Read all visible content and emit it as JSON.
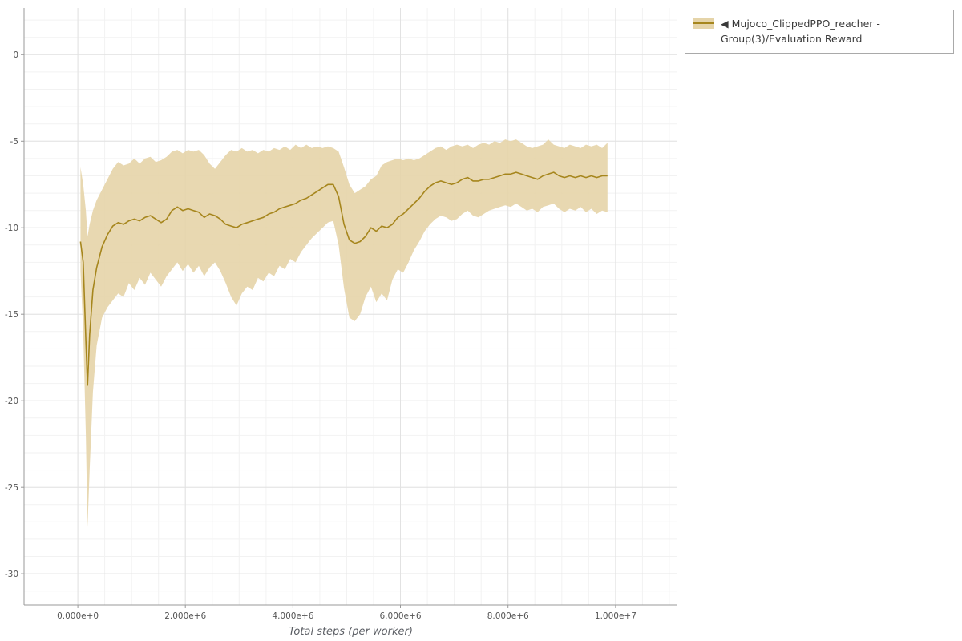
{
  "legend": {
    "arrow": "◀",
    "label": "Mujoco_ClippedPPO_reacher - Group(3)/Evaluation Reward"
  },
  "chart_data": {
    "type": "line",
    "title": "",
    "xlabel": "Total steps (per worker)",
    "ylabel": "",
    "x_units": "steps (values below are in millions of steps)",
    "legend_position": "top-right-outside",
    "grid_on": true,
    "xlim": [
      -1.0,
      11.15
    ],
    "ylim": [
      -31.8,
      2.7
    ],
    "x_ticks": {
      "values": [
        0,
        2,
        4,
        6,
        8,
        10
      ],
      "labels": [
        "0.000e+0",
        "2.000e+6",
        "4.000e+6",
        "6.000e+6",
        "8.000e+6",
        "1.000e+7"
      ]
    },
    "y_ticks": {
      "values": [
        0,
        -5,
        -10,
        -15,
        -20,
        -25,
        -30
      ],
      "labels": [
        "0",
        "-5",
        "-10",
        "-15",
        "-20",
        "-25",
        "-30"
      ]
    },
    "grid": {
      "x_minor_step": 0.5,
      "x_major_step": 2,
      "y_minor_step": 1,
      "y_major_step": 5
    },
    "colors": {
      "line": "#a6861d",
      "band": "#e5d4a9",
      "grid_major": "#e2e2e2",
      "grid_minor": "#f2f2f2",
      "axis": "#999999",
      "tick_text": "#555555"
    },
    "series": [
      {
        "name": "Mujoco_ClippedPPO_reacher - Group(3)/Evaluation Reward",
        "x": [
          0.05,
          0.1,
          0.15,
          0.18,
          0.22,
          0.28,
          0.35,
          0.45,
          0.55,
          0.65,
          0.75,
          0.85,
          0.95,
          1.05,
          1.15,
          1.25,
          1.35,
          1.45,
          1.55,
          1.65,
          1.75,
          1.85,
          1.95,
          2.05,
          2.15,
          2.25,
          2.35,
          2.45,
          2.55,
          2.65,
          2.75,
          2.85,
          2.95,
          3.05,
          3.15,
          3.25,
          3.35,
          3.45,
          3.55,
          3.65,
          3.75,
          3.85,
          3.95,
          4.05,
          4.15,
          4.25,
          4.35,
          4.45,
          4.55,
          4.65,
          4.75,
          4.85,
          4.95,
          5.05,
          5.15,
          5.25,
          5.35,
          5.45,
          5.55,
          5.65,
          5.75,
          5.85,
          5.95,
          6.05,
          6.15,
          6.25,
          6.35,
          6.45,
          6.55,
          6.65,
          6.75,
          6.85,
          6.95,
          7.05,
          7.15,
          7.25,
          7.35,
          7.45,
          7.55,
          7.65,
          7.75,
          7.85,
          7.95,
          8.05,
          8.15,
          8.25,
          8.35,
          8.45,
          8.55,
          8.65,
          8.75,
          8.85,
          8.95,
          9.05,
          9.15,
          9.25,
          9.35,
          9.45,
          9.55,
          9.65,
          9.75,
          9.85
        ],
        "mean": [
          -10.8,
          -12.0,
          -16.5,
          -19.1,
          -16.2,
          -13.6,
          -12.3,
          -11.1,
          -10.4,
          -9.9,
          -9.7,
          -9.8,
          -9.6,
          -9.5,
          -9.6,
          -9.4,
          -9.3,
          -9.5,
          -9.7,
          -9.5,
          -9.0,
          -8.8,
          -9.0,
          -8.9,
          -9.0,
          -9.1,
          -9.4,
          -9.2,
          -9.3,
          -9.5,
          -9.8,
          -9.9,
          -10.0,
          -9.8,
          -9.7,
          -9.6,
          -9.5,
          -9.4,
          -9.2,
          -9.1,
          -8.9,
          -8.8,
          -8.7,
          -8.6,
          -8.4,
          -8.3,
          -8.1,
          -7.9,
          -7.7,
          -7.5,
          -7.5,
          -8.2,
          -9.8,
          -10.7,
          -10.9,
          -10.8,
          -10.5,
          -10.0,
          -10.2,
          -9.9,
          -10.0,
          -9.8,
          -9.4,
          -9.2,
          -8.9,
          -8.6,
          -8.3,
          -7.9,
          -7.6,
          -7.4,
          -7.3,
          -7.4,
          -7.5,
          -7.4,
          -7.2,
          -7.1,
          -7.3,
          -7.3,
          -7.2,
          -7.2,
          -7.1,
          -7.0,
          -6.9,
          -6.9,
          -6.8,
          -6.9,
          -7.0,
          -7.1,
          -7.2,
          -7.0,
          -6.9,
          -6.8,
          -7.0,
          -7.1,
          -7.0,
          -7.1,
          -7.0,
          -7.1,
          -7.0,
          -7.1,
          -7.0,
          -7.0
        ],
        "band_upper": [
          -6.5,
          -7.5,
          -9.0,
          -10.5,
          -9.8,
          -9.0,
          -8.4,
          -7.8,
          -7.2,
          -6.6,
          -6.2,
          -6.4,
          -6.3,
          -6.0,
          -6.3,
          -6.0,
          -5.9,
          -6.2,
          -6.1,
          -5.9,
          -5.6,
          -5.5,
          -5.7,
          -5.5,
          -5.6,
          -5.5,
          -5.8,
          -6.3,
          -6.6,
          -6.2,
          -5.8,
          -5.5,
          -5.6,
          -5.4,
          -5.6,
          -5.5,
          -5.7,
          -5.5,
          -5.6,
          -5.4,
          -5.5,
          -5.3,
          -5.5,
          -5.2,
          -5.4,
          -5.2,
          -5.4,
          -5.3,
          -5.4,
          -5.3,
          -5.4,
          -5.6,
          -6.5,
          -7.5,
          -8.0,
          -7.8,
          -7.6,
          -7.2,
          -7.0,
          -6.4,
          -6.2,
          -6.1,
          -6.0,
          -6.1,
          -6.0,
          -6.1,
          -6.0,
          -5.8,
          -5.6,
          -5.4,
          -5.3,
          -5.5,
          -5.3,
          -5.2,
          -5.3,
          -5.2,
          -5.4,
          -5.2,
          -5.1,
          -5.2,
          -5.0,
          -5.1,
          -4.9,
          -5.0,
          -4.9,
          -5.1,
          -5.3,
          -5.4,
          -5.3,
          -5.2,
          -4.9,
          -5.2,
          -5.3,
          -5.4,
          -5.2,
          -5.3,
          -5.4,
          -5.2,
          -5.3,
          -5.2,
          -5.4,
          -5.1
        ],
        "band_lower": [
          -12.5,
          -16.0,
          -22.0,
          -27.3,
          -24.0,
          -19.5,
          -16.8,
          -15.2,
          -14.6,
          -14.2,
          -13.8,
          -14.0,
          -13.2,
          -13.6,
          -12.9,
          -13.3,
          -12.6,
          -13.0,
          -13.4,
          -12.8,
          -12.4,
          -12.0,
          -12.5,
          -12.1,
          -12.6,
          -12.2,
          -12.8,
          -12.3,
          -12.0,
          -12.5,
          -13.2,
          -14.0,
          -14.5,
          -13.8,
          -13.4,
          -13.6,
          -12.9,
          -13.1,
          -12.6,
          -12.8,
          -12.2,
          -12.4,
          -11.8,
          -12.0,
          -11.4,
          -11.0,
          -10.6,
          -10.3,
          -10.0,
          -9.7,
          -9.6,
          -11.0,
          -13.5,
          -15.2,
          -15.4,
          -15.0,
          -14.0,
          -13.4,
          -14.3,
          -13.8,
          -14.2,
          -13.0,
          -12.4,
          -12.6,
          -12.0,
          -11.3,
          -10.8,
          -10.2,
          -9.8,
          -9.5,
          -9.3,
          -9.4,
          -9.6,
          -9.5,
          -9.2,
          -9.0,
          -9.3,
          -9.4,
          -9.2,
          -9.0,
          -8.9,
          -8.8,
          -8.7,
          -8.8,
          -8.6,
          -8.8,
          -9.0,
          -8.9,
          -9.1,
          -8.8,
          -8.7,
          -8.6,
          -8.9,
          -9.1,
          -8.9,
          -9.0,
          -8.8,
          -9.1,
          -8.9,
          -9.2,
          -9.0,
          -9.1
        ]
      }
    ]
  }
}
